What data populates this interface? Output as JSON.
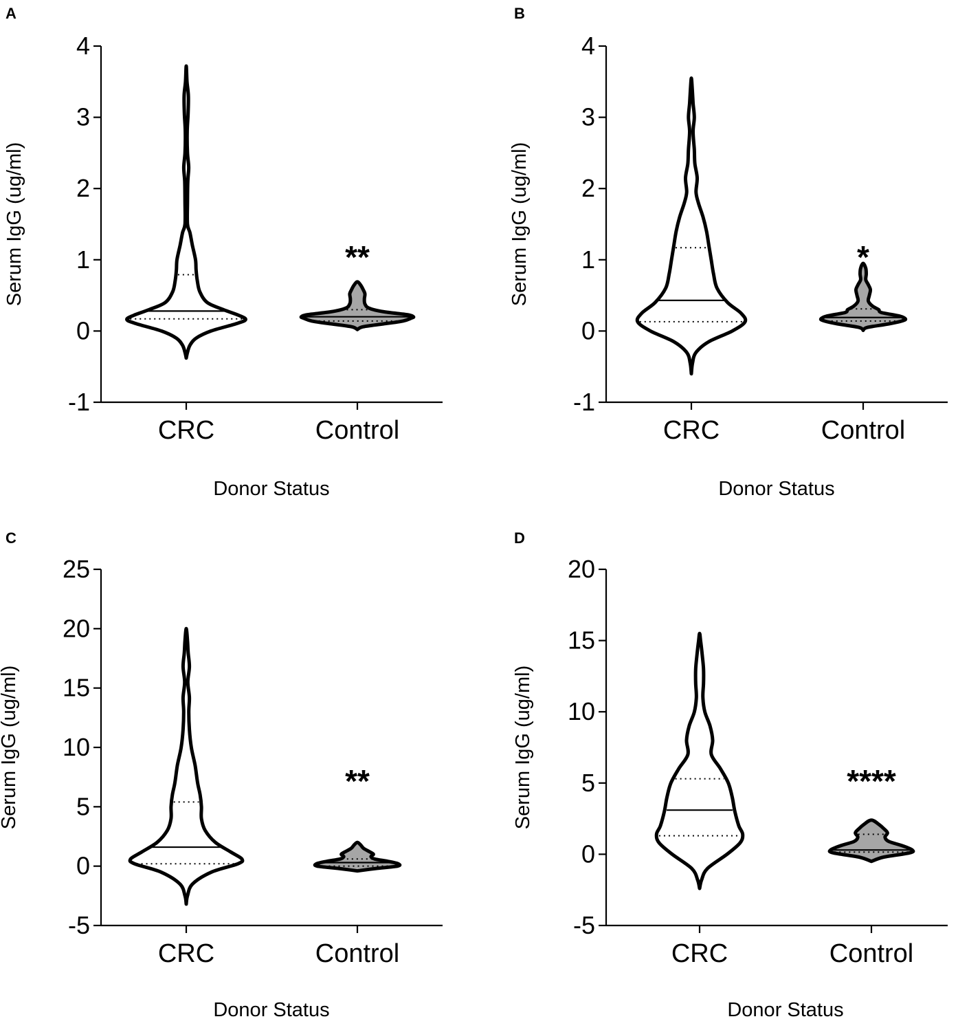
{
  "chart_data": [
    {
      "type": "violin",
      "panel_label": "A",
      "ylabel": "Serum IgG (ug/ml)",
      "xlabel": "Donor Status",
      "ylim": [
        -1,
        4
      ],
      "yticks": [
        -1,
        0,
        1,
        2,
        3,
        4
      ],
      "ytick_labels": [
        "-1",
        "0",
        "1",
        "2",
        "3",
        "4"
      ],
      "categories": [
        "CRC",
        "Control"
      ],
      "significance": "**",
      "series": [
        {
          "name": "CRC",
          "fill": "#ffffff",
          "median": 0.28,
          "q1": 0.17,
          "q3": 0.79,
          "profile": [
            [
              -0.38,
              0
            ],
            [
              -0.3,
              0.02
            ],
            [
              -0.2,
              0.06
            ],
            [
              -0.1,
              0.16
            ],
            [
              0.0,
              0.4
            ],
            [
              0.1,
              0.8
            ],
            [
              0.16,
              0.96
            ],
            [
              0.22,
              0.85
            ],
            [
              0.3,
              0.6
            ],
            [
              0.4,
              0.34
            ],
            [
              0.55,
              0.22
            ],
            [
              0.7,
              0.18
            ],
            [
              0.85,
              0.16
            ],
            [
              1.0,
              0.15
            ],
            [
              1.2,
              0.1
            ],
            [
              1.38,
              0.06
            ],
            [
              1.5,
              0.02
            ],
            [
              1.8,
              0.02
            ],
            [
              2.1,
              0.025
            ],
            [
              2.3,
              0.04
            ],
            [
              2.5,
              0.02
            ],
            [
              2.8,
              0.015
            ],
            [
              3.05,
              0.03
            ],
            [
              3.3,
              0.035
            ],
            [
              3.5,
              0.012
            ],
            [
              3.72,
              0
            ]
          ]
        },
        {
          "name": "Control",
          "fill": "#a6a6a6",
          "median": 0.2,
          "q1": 0.14,
          "q3": 0.3,
          "profile": [
            [
              0.02,
              0
            ],
            [
              0.06,
              0.1
            ],
            [
              0.1,
              0.45
            ],
            [
              0.14,
              0.78
            ],
            [
              0.18,
              0.92
            ],
            [
              0.2,
              0.96
            ],
            [
              0.23,
              0.85
            ],
            [
              0.27,
              0.45
            ],
            [
              0.32,
              0.2
            ],
            [
              0.38,
              0.13
            ],
            [
              0.45,
              0.12
            ],
            [
              0.52,
              0.13
            ],
            [
              0.58,
              0.1
            ],
            [
              0.64,
              0.06
            ],
            [
              0.69,
              0
            ]
          ]
        }
      ]
    },
    {
      "type": "violin",
      "panel_label": "B",
      "ylabel": "Serum IgG (ug/ml)",
      "xlabel": "Donor Status",
      "ylim": [
        -1,
        4
      ],
      "yticks": [
        -1,
        0,
        1,
        2,
        3,
        4
      ],
      "ytick_labels": [
        "-1",
        "0",
        "1",
        "2",
        "3",
        "4"
      ],
      "categories": [
        "CRC",
        "Control"
      ],
      "significance": "*",
      "series": [
        {
          "name": "CRC",
          "fill": "#ffffff",
          "median": 0.43,
          "q1": 0.13,
          "q3": 1.17,
          "profile": [
            [
              -0.6,
              0
            ],
            [
              -0.45,
              0.02
            ],
            [
              -0.3,
              0.08
            ],
            [
              -0.15,
              0.3
            ],
            [
              0.0,
              0.7
            ],
            [
              0.13,
              0.92
            ],
            [
              0.25,
              0.85
            ],
            [
              0.4,
              0.62
            ],
            [
              0.6,
              0.44
            ],
            [
              0.8,
              0.38
            ],
            [
              1.0,
              0.34
            ],
            [
              1.2,
              0.3
            ],
            [
              1.4,
              0.26
            ],
            [
              1.6,
              0.2
            ],
            [
              1.8,
              0.12
            ],
            [
              1.95,
              0.08
            ],
            [
              2.15,
              0.1
            ],
            [
              2.35,
              0.06
            ],
            [
              2.55,
              0.05
            ],
            [
              2.8,
              0.03
            ],
            [
              3.0,
              0.05
            ],
            [
              3.2,
              0.03
            ],
            [
              3.4,
              0.015
            ],
            [
              3.55,
              0
            ]
          ]
        },
        {
          "name": "Control",
          "fill": "#a6a6a6",
          "median": 0.19,
          "q1": 0.14,
          "q3": 0.31,
          "profile": [
            [
              0.01,
              0
            ],
            [
              0.05,
              0.08
            ],
            [
              0.1,
              0.5
            ],
            [
              0.14,
              0.75
            ],
            [
              0.17,
              0.82
            ],
            [
              0.21,
              0.7
            ],
            [
              0.26,
              0.35
            ],
            [
              0.3,
              0.3
            ],
            [
              0.35,
              0.18
            ],
            [
              0.42,
              0.1
            ],
            [
              0.5,
              0.12
            ],
            [
              0.58,
              0.14
            ],
            [
              0.65,
              0.1
            ],
            [
              0.72,
              0.05
            ],
            [
              0.8,
              0.06
            ],
            [
              0.88,
              0.05
            ],
            [
              0.95,
              0
            ]
          ]
        }
      ]
    },
    {
      "type": "violin",
      "panel_label": "C",
      "ylabel": "Serum IgG (ug/ml)",
      "xlabel": "Donor Status",
      "ylim": [
        -5,
        25
      ],
      "yticks": [
        -5,
        0,
        5,
        10,
        15,
        20,
        25
      ],
      "ytick_labels": [
        "-5",
        "0",
        "5",
        "10",
        "15",
        "20",
        "25"
      ],
      "categories": [
        "CRC",
        "Control"
      ],
      "significance": "**",
      "series": [
        {
          "name": "CRC",
          "fill": "#ffffff",
          "median": 1.6,
          "q1": 0.2,
          "q3": 5.4,
          "profile": [
            [
              -3.2,
              0
            ],
            [
              -2.5,
              0.02
            ],
            [
              -1.5,
              0.1
            ],
            [
              -0.5,
              0.4
            ],
            [
              0.2,
              0.82
            ],
            [
              0.6,
              0.88
            ],
            [
              1.2,
              0.7
            ],
            [
              2.0,
              0.46
            ],
            [
              3.0,
              0.3
            ],
            [
              4.0,
              0.24
            ],
            [
              5.0,
              0.24
            ],
            [
              6.0,
              0.22
            ],
            [
              7.0,
              0.18
            ],
            [
              8.5,
              0.14
            ],
            [
              10,
              0.08
            ],
            [
              11.5,
              0.05
            ],
            [
              13,
              0.04
            ],
            [
              14.2,
              0.05
            ],
            [
              15.5,
              0.025
            ],
            [
              16.8,
              0.05
            ],
            [
              18,
              0.03
            ],
            [
              19,
              0.02
            ],
            [
              20,
              0
            ]
          ]
        },
        {
          "name": "Control",
          "fill": "#a6a6a6",
          "median": 0.3,
          "q1": 0.0,
          "q3": 0.6,
          "profile": [
            [
              -0.4,
              0
            ],
            [
              -0.2,
              0.3
            ],
            [
              0.0,
              0.65
            ],
            [
              0.2,
              0.66
            ],
            [
              0.4,
              0.5
            ],
            [
              0.6,
              0.28
            ],
            [
              0.8,
              0.22
            ],
            [
              1.0,
              0.26
            ],
            [
              1.2,
              0.2
            ],
            [
              1.5,
              0.1
            ],
            [
              1.8,
              0.05
            ],
            [
              2.0,
              0
            ]
          ]
        }
      ]
    },
    {
      "type": "violin",
      "panel_label": "D",
      "ylabel": "Serum IgG (ug/ml)",
      "xlabel": "Donor Status",
      "ylim": [
        -5,
        20
      ],
      "yticks": [
        -5,
        0,
        5,
        10,
        15,
        20
      ],
      "ytick_labels": [
        "-5",
        "0",
        "5",
        "10",
        "15",
        "20"
      ],
      "categories": [
        "CRC",
        "Control"
      ],
      "significance": "****",
      "series": [
        {
          "name": "CRC",
          "fill": "#ffffff",
          "median": 3.1,
          "q1": 1.3,
          "q3": 5.3,
          "profile": [
            [
              -2.4,
              0
            ],
            [
              -1.8,
              0.03
            ],
            [
              -1.0,
              0.12
            ],
            [
              0.0,
              0.42
            ],
            [
              0.8,
              0.62
            ],
            [
              1.4,
              0.66
            ],
            [
              2.0,
              0.6
            ],
            [
              3.0,
              0.54
            ],
            [
              4.0,
              0.5
            ],
            [
              5.0,
              0.44
            ],
            [
              6.0,
              0.32
            ],
            [
              7.0,
              0.18
            ],
            [
              8.0,
              0.2
            ],
            [
              9.0,
              0.16
            ],
            [
              10.0,
              0.08
            ],
            [
              11.0,
              0.05
            ],
            [
              12.0,
              0.06
            ],
            [
              13.0,
              0.06
            ],
            [
              14.0,
              0.04
            ],
            [
              15.0,
              0.015
            ],
            [
              15.5,
              0
            ]
          ]
        },
        {
          "name": "Control",
          "fill": "#a6a6a6",
          "median": 0.3,
          "q1": 0.15,
          "q3": 1.4,
          "profile": [
            [
              -0.5,
              0
            ],
            [
              -0.2,
              0.2
            ],
            [
              0.1,
              0.62
            ],
            [
              0.3,
              0.66
            ],
            [
              0.6,
              0.5
            ],
            [
              0.9,
              0.28
            ],
            [
              1.2,
              0.22
            ],
            [
              1.5,
              0.26
            ],
            [
              1.8,
              0.2
            ],
            [
              2.1,
              0.12
            ],
            [
              2.4,
              0
            ]
          ]
        }
      ]
    }
  ]
}
